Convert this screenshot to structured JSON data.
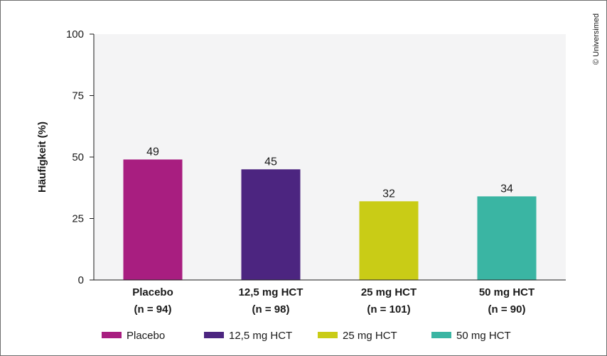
{
  "copyright": "© Universimed",
  "chart_data": {
    "type": "bar",
    "ylabel": "Häufigkeit (%)",
    "ylim": [
      0,
      100
    ],
    "yticks": [
      0,
      25,
      50,
      75,
      100
    ],
    "grid": false,
    "legend_position": "bottom",
    "categories": [
      {
        "name": "Placebo",
        "n": "(n = 94)"
      },
      {
        "name": "12,5 mg HCT",
        "n": "(n = 98)"
      },
      {
        "name": "25 mg HCT",
        "n": "(n = 101)"
      },
      {
        "name": "50 mg HCT",
        "n": "(n = 90)"
      }
    ],
    "values": [
      49,
      45,
      32,
      34
    ],
    "colors": [
      "#a81e80",
      "#4c2580",
      "#c9cc16",
      "#3ab5a3"
    ],
    "legend": [
      "Placebo",
      "12,5 mg HCT",
      "25 mg HCT",
      "50 mg HCT"
    ]
  }
}
